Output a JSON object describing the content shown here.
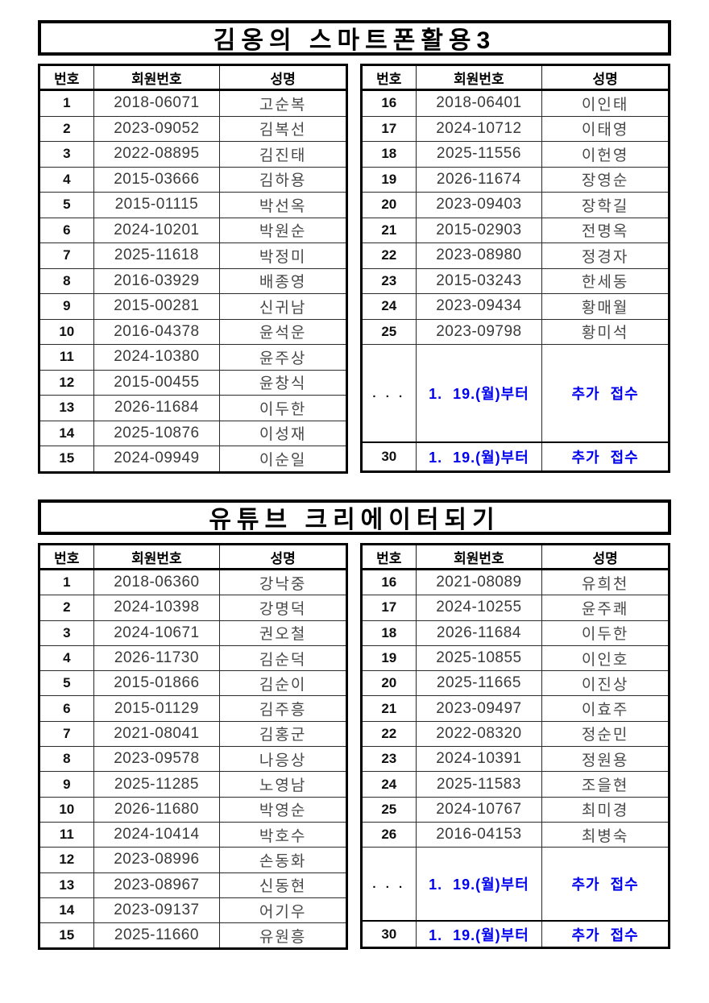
{
  "page": {
    "accent_blue": "#0000f0"
  },
  "sections": [
    {
      "title": "김옹의 스마트폰활용3",
      "headers": [
        "번호",
        "회원번호",
        "성명"
      ],
      "left_rows": [
        [
          "1",
          "2018-06071",
          "고순복"
        ],
        [
          "2",
          "2023-09052",
          "김복선"
        ],
        [
          "3",
          "2022-08895",
          "김진태"
        ],
        [
          "4",
          "2015-03666",
          "김하용"
        ],
        [
          "5",
          "2015-01115",
          "박선옥"
        ],
        [
          "6",
          "2024-10201",
          "박원순"
        ],
        [
          "7",
          "2025-11618",
          "박정미"
        ],
        [
          "8",
          "2016-03929",
          "배종영"
        ],
        [
          "9",
          "2015-00281",
          "신귀남"
        ],
        [
          "10",
          "2016-04378",
          "윤석운"
        ],
        [
          "11",
          "2024-10380",
          "윤주상"
        ],
        [
          "12",
          "2015-00455",
          "윤창식"
        ],
        [
          "13",
          "2026-11684",
          "이두한"
        ],
        [
          "14",
          "2025-10876",
          "이성재"
        ],
        [
          "15",
          "2024-09949",
          "이순일"
        ]
      ],
      "right_rows": [
        [
          "16",
          "2018-06401",
          "이인태"
        ],
        [
          "17",
          "2024-10712",
          "이태영"
        ],
        [
          "18",
          "2025-11556",
          "이헌영"
        ],
        [
          "19",
          "2026-11674",
          "장영순"
        ],
        [
          "20",
          "2023-09403",
          "장학길"
        ],
        [
          "21",
          "2015-02903",
          "전명옥"
        ],
        [
          "22",
          "2023-08980",
          "정경자"
        ],
        [
          "23",
          "2015-03243",
          "한세동"
        ],
        [
          "24",
          "2023-09434",
          "황매월"
        ],
        [
          "25",
          "2023-09798",
          "황미석"
        ]
      ],
      "ellipsis_row": {
        "num": ". . .",
        "date": "1. 19.(월)부터",
        "note": "추가 접수"
      },
      "last_row": {
        "num": "30",
        "date": "1. 19.(월)부터",
        "note": "추가 접수"
      }
    },
    {
      "title": "유튜브 크리에이터되기",
      "headers": [
        "번호",
        "회원번호",
        "성명"
      ],
      "left_rows": [
        [
          "1",
          "2018-06360",
          "강낙중"
        ],
        [
          "2",
          "2024-10398",
          "강명덕"
        ],
        [
          "3",
          "2024-10671",
          "권오철"
        ],
        [
          "4",
          "2026-11730",
          "김순덕"
        ],
        [
          "5",
          "2015-01866",
          "김순이"
        ],
        [
          "6",
          "2015-01129",
          "김주흥"
        ],
        [
          "7",
          "2021-08041",
          "김홍군"
        ],
        [
          "8",
          "2023-09578",
          "나응상"
        ],
        [
          "9",
          "2025-11285",
          "노영남"
        ],
        [
          "10",
          "2026-11680",
          "박영순"
        ],
        [
          "11",
          "2024-10414",
          "박호수"
        ],
        [
          "12",
          "2023-08996",
          "손동화"
        ],
        [
          "13",
          "2023-08967",
          "신동현"
        ],
        [
          "14",
          "2023-09137",
          "어기우"
        ],
        [
          "15",
          "2025-11660",
          "유원흥"
        ]
      ],
      "right_rows": [
        [
          "16",
          "2021-08089",
          "유희천"
        ],
        [
          "17",
          "2024-10255",
          "윤주쾌"
        ],
        [
          "18",
          "2026-11684",
          "이두한"
        ],
        [
          "19",
          "2025-10855",
          "이인호"
        ],
        [
          "20",
          "2025-11665",
          "이진상"
        ],
        [
          "21",
          "2023-09497",
          "이효주"
        ],
        [
          "22",
          "2022-08320",
          "정순민"
        ],
        [
          "23",
          "2024-10391",
          "정원용"
        ],
        [
          "24",
          "2025-11583",
          "조을현"
        ],
        [
          "25",
          "2024-10767",
          "최미경"
        ],
        [
          "26",
          "2016-04153",
          "최병숙"
        ]
      ],
      "ellipsis_row": {
        "num": ". . .",
        "date": "1. 19.(월)부터",
        "note": "추가 접수"
      },
      "last_row": {
        "num": "30",
        "date": "1. 19.(월)부터",
        "note": "추가 접수"
      }
    }
  ]
}
